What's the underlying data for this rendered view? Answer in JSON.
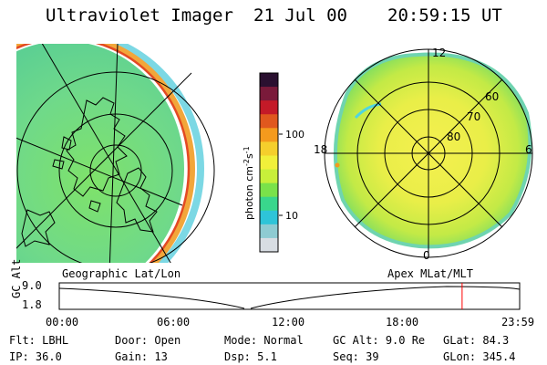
{
  "header": {
    "instrument": "Ultraviolet Imager",
    "date": "21 Jul 00",
    "time": "20:59:15 UT"
  },
  "left_panel": {
    "caption": "Geographic Lat/Lon"
  },
  "right_panel": {
    "caption": "Apex MLat/MLT",
    "mlt_labels": [
      "12",
      "18",
      "6",
      "0"
    ],
    "mlat_labels": [
      "60",
      "70",
      "80"
    ]
  },
  "colorbar": {
    "label": "photon cm",
    "exp1": "-2",
    "mid": "s",
    "exp2": "-1",
    "tick_labels": [
      "100",
      "10"
    ],
    "colors": [
      "#d8dde3",
      "#8ecbd2",
      "#2ec4d8",
      "#39d68c",
      "#7ae24a",
      "#c8ef3a",
      "#f1f03a",
      "#f5cf2c",
      "#f49a1d",
      "#e0581e",
      "#c41a28",
      "#7a1a3a",
      "#2a1030"
    ]
  },
  "gc_alt_plot": {
    "ylabel": "GC Alt",
    "y_ticks": [
      "9.0",
      "1.8"
    ],
    "x_ticks": [
      "00:00",
      "06:00",
      "12:00",
      "18:00",
      "23:59"
    ],
    "current_time_marker_hours": 21.0,
    "line_color": "#ff0000"
  },
  "status": {
    "row1": [
      {
        "label": "Flt:",
        "value": "LBHL"
      },
      {
        "label": "Door:",
        "value": "Open"
      },
      {
        "label": "Mode:",
        "value": "Normal"
      },
      {
        "label": "GC Alt:",
        "value": "9.0 Re"
      },
      {
        "label": "GLat:",
        "value": "84.3"
      }
    ],
    "row2": [
      {
        "label": "IP:",
        "value": "36.0"
      },
      {
        "label": "Gain:",
        "value": "13"
      },
      {
        "label": "Dsp:",
        "value": "5.1"
      },
      {
        "label": "Seq:",
        "value": "39"
      },
      {
        "label": "GLon:",
        "value": "345.4"
      }
    ]
  }
}
